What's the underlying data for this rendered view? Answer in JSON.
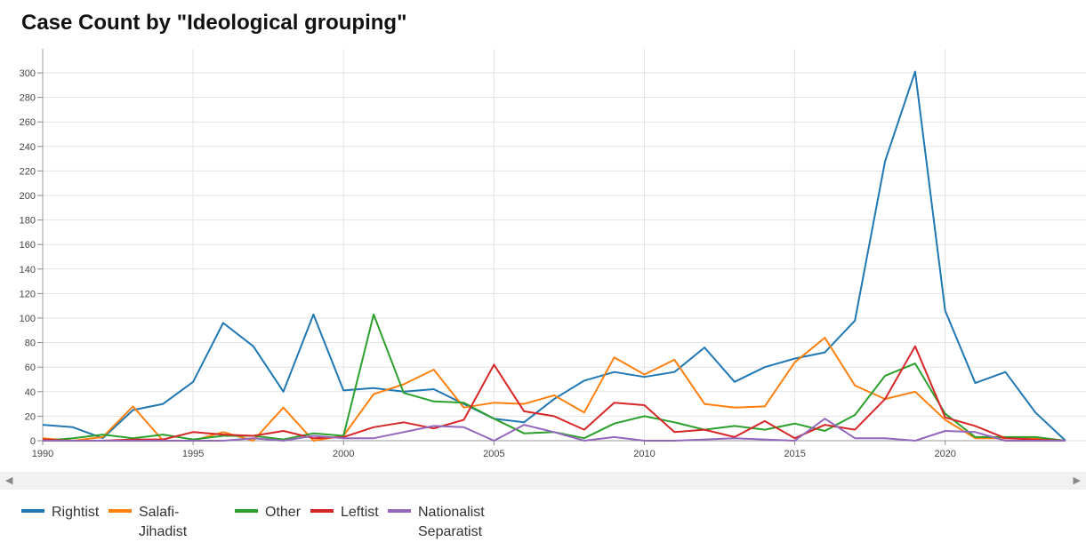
{
  "title": "Case Count by \"Ideological grouping\"",
  "chart_data": {
    "type": "line",
    "x": [
      1990,
      1991,
      1992,
      1993,
      1994,
      1995,
      1996,
      1997,
      1998,
      1999,
      2000,
      2001,
      2002,
      2003,
      2004,
      2005,
      2006,
      2007,
      2008,
      2009,
      2010,
      2011,
      2012,
      2013,
      2014,
      2015,
      2016,
      2017,
      2018,
      2019,
      2020,
      2021,
      2022,
      2023,
      2024
    ],
    "xlim": [
      1990,
      2024
    ],
    "ylim": [
      0,
      300
    ],
    "xticks": [
      1990,
      1995,
      2000,
      2005,
      2010,
      2015,
      2020
    ],
    "yticks": [
      0,
      20,
      40,
      60,
      80,
      100,
      120,
      140,
      160,
      180,
      200,
      220,
      240,
      260,
      280,
      300
    ],
    "grid": true,
    "legend_position": "bottom",
    "series": [
      {
        "name": "Rightist",
        "color": "#1f77b4",
        "values": [
          13,
          11,
          2,
          25,
          30,
          48,
          96,
          77,
          40,
          103,
          41,
          43,
          40,
          42,
          30,
          18,
          15,
          34,
          49,
          56,
          52,
          56,
          76,
          48,
          60,
          67,
          72,
          98,
          228,
          301,
          106,
          47,
          56,
          23,
          0
        ]
      },
      {
        "name": "Salafi-Jihadist",
        "color": "#ff7f0e",
        "values": [
          2,
          0,
          3,
          28,
          0,
          0,
          7,
          0,
          27,
          0,
          4,
          38,
          46,
          58,
          27,
          31,
          30,
          37,
          23,
          68,
          54,
          66,
          30,
          27,
          28,
          64,
          84,
          45,
          34,
          40,
          17,
          2,
          2,
          2,
          0
        ]
      },
      {
        "name": "Other",
        "color": "#2ca02c",
        "values": [
          0,
          2,
          5,
          2,
          5,
          1,
          4,
          4,
          1,
          6,
          4,
          103,
          39,
          32,
          31,
          18,
          6,
          7,
          2,
          14,
          20,
          15,
          9,
          12,
          9,
          14,
          8,
          21,
          53,
          63,
          22,
          3,
          3,
          3,
          0
        ]
      },
      {
        "name": "Leftist",
        "color": "#d62728",
        "values": [
          1,
          0,
          0,
          1,
          1,
          7,
          5,
          4,
          8,
          2,
          3,
          11,
          15,
          10,
          17,
          62,
          24,
          20,
          9,
          31,
          29,
          7,
          9,
          3,
          16,
          2,
          13,
          9,
          34,
          77,
          19,
          12,
          2,
          1,
          0
        ]
      },
      {
        "name": "Nationalist Separatist",
        "color": "#9467bd",
        "values": [
          0,
          0,
          0,
          0,
          0,
          0,
          0,
          2,
          0,
          4,
          2,
          2,
          7,
          12,
          11,
          0,
          13,
          7,
          0,
          3,
          0,
          0,
          1,
          2,
          1,
          0,
          18,
          2,
          2,
          0,
          8,
          7,
          0,
          0,
          0
        ]
      }
    ]
  },
  "legend": [
    {
      "line1": "Rightist",
      "line2": ""
    },
    {
      "line1": "Salafi-",
      "line2": "Jihadist"
    },
    {
      "line1": "Other",
      "line2": ""
    },
    {
      "line1": "Leftist",
      "line2": ""
    },
    {
      "line1": "Nationalist",
      "line2": "Separatist"
    }
  ],
  "scrollbar": {
    "left_icon": "scroll-left-icon",
    "right_icon": "scroll-right-icon"
  }
}
